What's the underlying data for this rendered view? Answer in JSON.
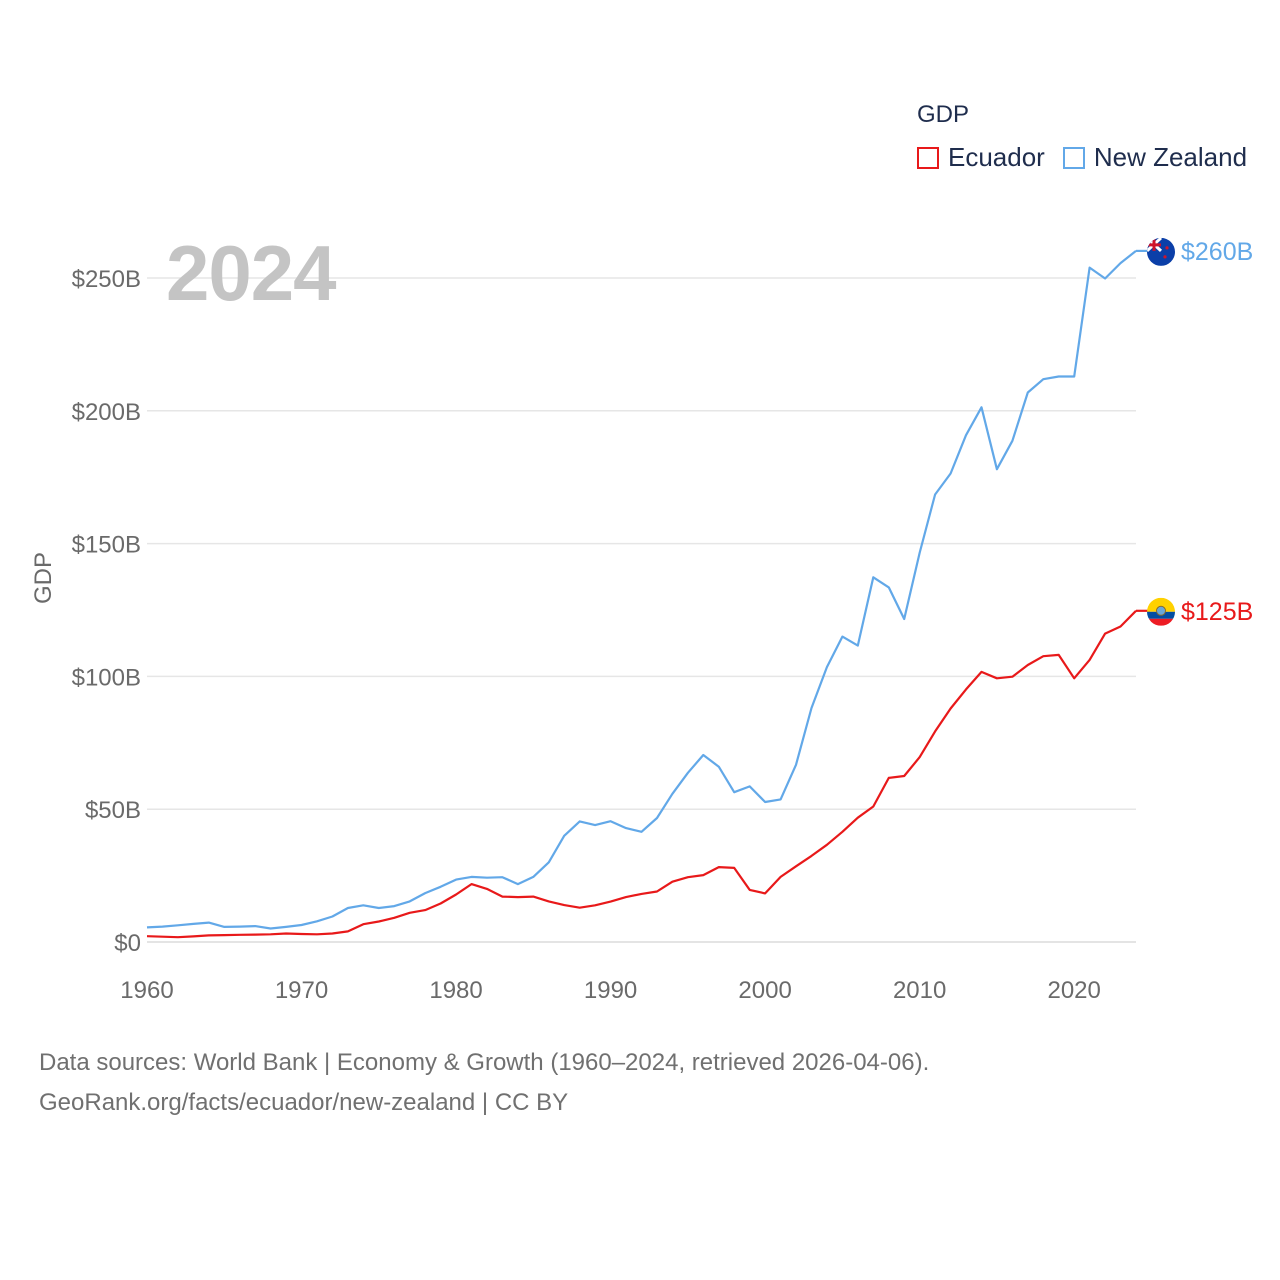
{
  "legend": {
    "title": "GDP",
    "items": [
      {
        "label": "Ecuador",
        "color": "#e8191a"
      },
      {
        "label": "New Zealand",
        "color": "#62a8e8"
      }
    ]
  },
  "year_label": "2024",
  "source": {
    "line1": "Data sources: World Bank | Economy & Growth (1960–2024, retrieved 2026-04-06).",
    "line2": "GeoRank.org/facts/ecuador/new-zealand | CC BY"
  },
  "chart_data": {
    "type": "line",
    "title": "",
    "xlabel": "",
    "ylabel": "GDP",
    "xlim": [
      1960,
      2024
    ],
    "ylim": [
      0,
      250
    ],
    "y_unit": "billion USD",
    "grid": true,
    "legend_position": "top-right",
    "x_ticks": [
      1960,
      1970,
      1980,
      1990,
      2000,
      2010,
      2020
    ],
    "x_tick_labels": [
      "1960",
      "1970",
      "1980",
      "1990",
      "2000",
      "2010",
      "2020"
    ],
    "y_ticks": [
      0,
      50,
      100,
      150,
      200,
      250
    ],
    "y_tick_labels": [
      "$0",
      "$50B",
      "$100B",
      "$150B",
      "$200B",
      "$250B"
    ],
    "x": [
      1960,
      1961,
      1962,
      1963,
      1964,
      1965,
      1966,
      1967,
      1968,
      1969,
      1970,
      1971,
      1972,
      1973,
      1974,
      1975,
      1976,
      1977,
      1978,
      1979,
      1980,
      1981,
      1982,
      1983,
      1984,
      1985,
      1986,
      1987,
      1988,
      1989,
      1990,
      1991,
      1992,
      1993,
      1994,
      1995,
      1996,
      1997,
      1998,
      1999,
      2000,
      2001,
      2002,
      2003,
      2004,
      2005,
      2006,
      2007,
      2008,
      2009,
      2010,
      2011,
      2012,
      2013,
      2014,
      2015,
      2016,
      2017,
      2018,
      2019,
      2020,
      2021,
      2022,
      2023,
      2024
    ],
    "series": [
      {
        "name": "Ecuador",
        "color": "#e8191a",
        "end_label": "$125B",
        "values": [
          2.2,
          2.0,
          1.8,
          2.1,
          2.5,
          2.6,
          2.7,
          2.8,
          2.9,
          3.2,
          3.0,
          2.9,
          3.2,
          4.0,
          6.7,
          7.7,
          9.1,
          11.0,
          12.0,
          14.5,
          17.9,
          21.8,
          20.0,
          17.1,
          16.9,
          17.1,
          15.3,
          13.9,
          12.9,
          13.8,
          15.2,
          16.9,
          18.1,
          19.0,
          22.7,
          24.4,
          25.2,
          28.2,
          27.9,
          19.6,
          18.3,
          24.5,
          28.5,
          32.4,
          36.6,
          41.5,
          46.8,
          51.0,
          61.8,
          62.5,
          69.6,
          79.3,
          87.9,
          95.1,
          101.7,
          99.3,
          99.9,
          104.3,
          107.6,
          108.1,
          99.3,
          106.2,
          116.1,
          118.8,
          124.7
        ]
      },
      {
        "name": "New Zealand",
        "color": "#62a8e8",
        "end_label": "$260B",
        "values": [
          5.5,
          5.8,
          6.3,
          6.8,
          7.3,
          5.7,
          5.8,
          6.0,
          5.1,
          5.7,
          6.4,
          7.8,
          9.6,
          12.8,
          13.8,
          12.8,
          13.5,
          15.3,
          18.4,
          20.8,
          23.5,
          24.5,
          24.2,
          24.4,
          21.8,
          24.5,
          30.0,
          40.0,
          45.4,
          44.0,
          45.5,
          42.9,
          41.5,
          46.7,
          55.8,
          63.7,
          70.4,
          66.0,
          56.4,
          58.6,
          52.7,
          53.7,
          66.7,
          88.1,
          103.5,
          115.0,
          111.6,
          137.3,
          133.5,
          121.6,
          146.6,
          168.5,
          176.4,
          190.8,
          201.3,
          178.0,
          188.7,
          206.9,
          211.9,
          212.9,
          212.9,
          253.9,
          249.8,
          255.6,
          260.2
        ]
      }
    ]
  }
}
